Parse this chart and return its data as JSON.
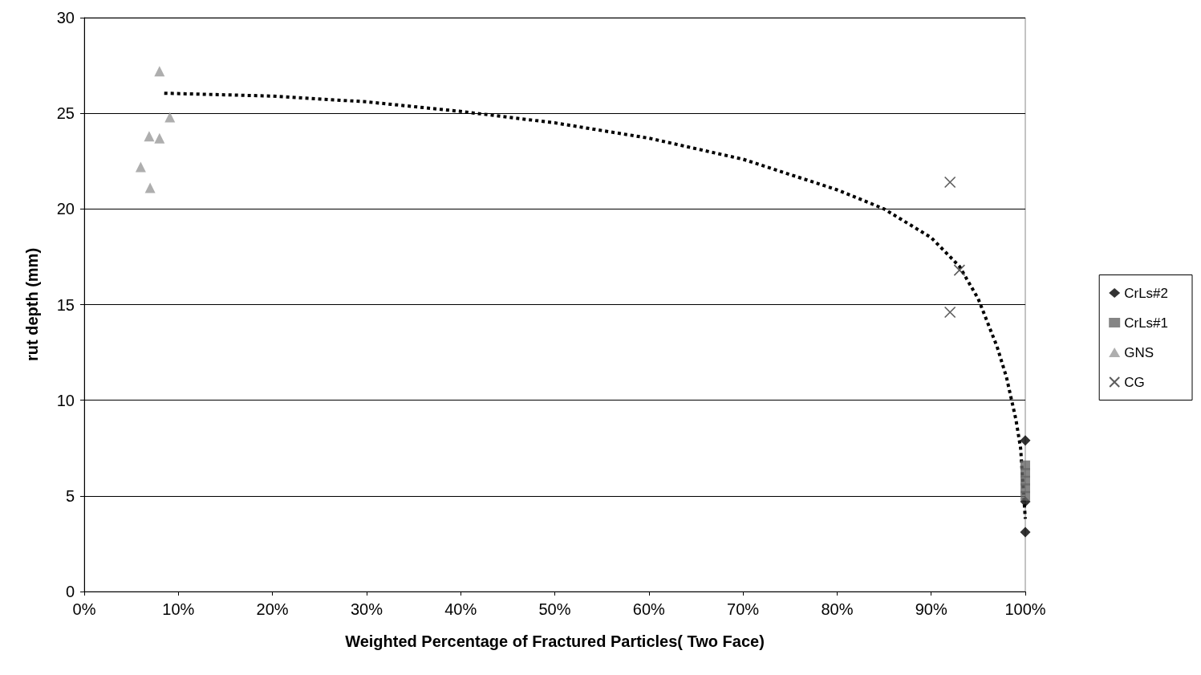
{
  "chart_data": {
    "type": "scatter",
    "xlabel": "Weighted Percentage of Fractured Particles( Two Face)",
    "ylabel": "rut depth (mm)",
    "xlim": [
      0,
      100
    ],
    "xticks": [
      {
        "value": 0,
        "label": "0%"
      },
      {
        "value": 10,
        "label": "10%"
      },
      {
        "value": 20,
        "label": "20%"
      },
      {
        "value": 30,
        "label": "30%"
      },
      {
        "value": 40,
        "label": "40%"
      },
      {
        "value": 50,
        "label": "50%"
      },
      {
        "value": 60,
        "label": "60%"
      },
      {
        "value": 70,
        "label": "70%"
      },
      {
        "value": 80,
        "label": "80%"
      },
      {
        "value": 90,
        "label": "90%"
      },
      {
        "value": 100,
        "label": "100%"
      }
    ],
    "ylim": [
      0,
      30
    ],
    "yticks": [
      0,
      5,
      10,
      15,
      20,
      25,
      30
    ],
    "grid": "y",
    "legend": "right",
    "series": [
      {
        "name": "CrLs#2",
        "color": "#000000",
        "marker": "diamond",
        "x": [
          100,
          100,
          100
        ],
        "values": [
          7.9,
          4.7,
          3.1
        ]
      },
      {
        "name": "CrLs#1",
        "color": "#666666",
        "marker": "square",
        "x": [
          100,
          100,
          100,
          100,
          100
        ],
        "values": [
          6.6,
          6.2,
          5.8,
          5.4,
          5.0
        ]
      },
      {
        "name": "GNS",
        "color": "#9a9a9a",
        "marker": "triangle",
        "x": [
          8,
          9.1,
          6.9,
          8,
          6,
          7
        ],
        "values": [
          27.2,
          24.8,
          23.8,
          23.7,
          22.2,
          21.1
        ]
      },
      {
        "name": "CG",
        "color": "#333333",
        "marker": "cross",
        "x": [
          92,
          93,
          92
        ],
        "values": [
          21.4,
          16.8,
          14.6
        ]
      },
      {
        "type": "line",
        "color": "#000000",
        "line_style": "dotted",
        "marker": "none",
        "x": [
          8.5,
          20,
          30,
          40,
          50,
          60,
          70,
          80,
          85,
          90,
          93,
          95,
          97,
          98,
          99,
          99.5,
          100
        ],
        "values": [
          26.05,
          25.9,
          25.6,
          25.1,
          24.5,
          23.7,
          22.6,
          21.0,
          20.0,
          18.5,
          17.0,
          15.3,
          12.8,
          11.2,
          9.0,
          7.5,
          3.8
        ]
      }
    ]
  }
}
